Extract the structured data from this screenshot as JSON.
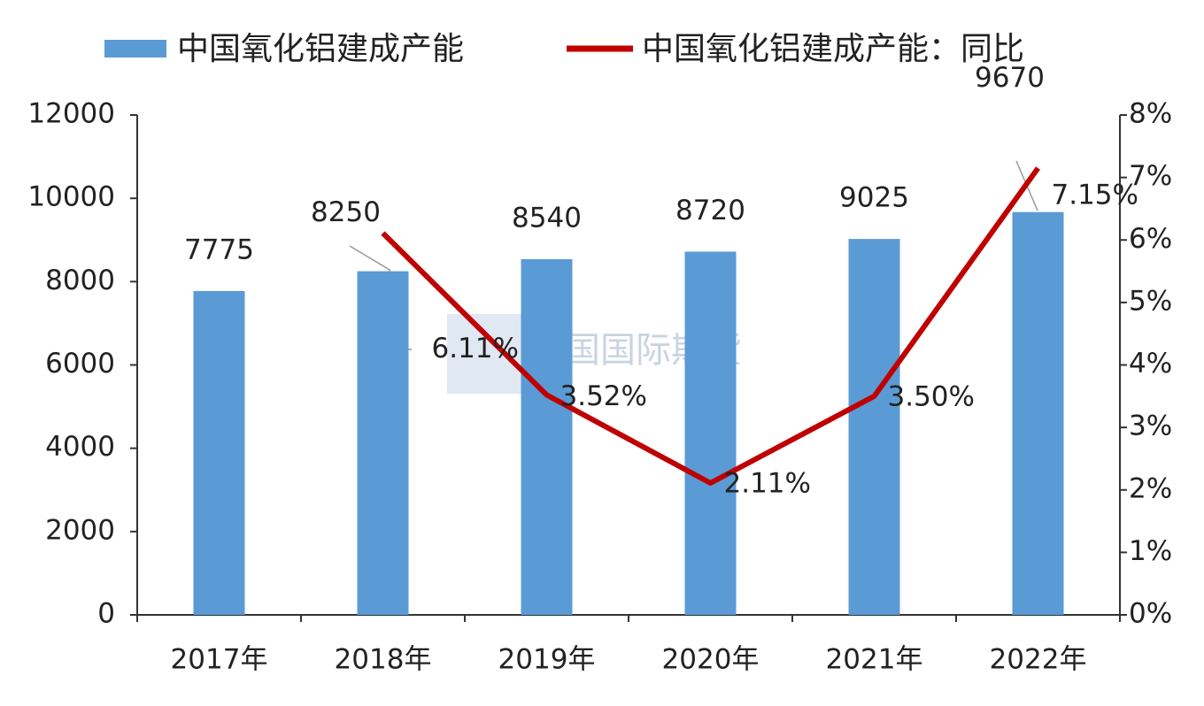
{
  "chart_data": {
    "type": "combo",
    "categories": [
      "2017年",
      "2018年",
      "2019年",
      "2020年",
      "2021年",
      "2022年"
    ],
    "series": [
      {
        "name": "中国氧化铝建成产能",
        "type": "bar",
        "color": "#5b9bd5",
        "values": [
          7775,
          8250,
          8540,
          8720,
          9025,
          9670
        ]
      },
      {
        "name": "中国氧化铝建成产能：同比",
        "type": "line",
        "axis": "y2",
        "color": "#c00000",
        "values": [
          null,
          6.11,
          3.52,
          2.11,
          3.5,
          7.15
        ],
        "value_labels": [
          null,
          "6.11%",
          "3.52%",
          "2.11%",
          "3.50%",
          "7.15%"
        ]
      }
    ],
    "ylim": [
      0,
      12000
    ],
    "yticks": [
      0,
      2000,
      4000,
      6000,
      8000,
      10000,
      12000
    ],
    "y2lim": [
      0,
      8
    ],
    "y2ticks": [
      {
        "value": 0,
        "label": "0%"
      },
      {
        "value": 1,
        "label": "1%"
      },
      {
        "value": 2,
        "label": "2%"
      },
      {
        "value": 3,
        "label": "3%"
      },
      {
        "value": 4,
        "label": "4%"
      },
      {
        "value": 5,
        "label": "5%"
      },
      {
        "value": 6,
        "label": "6%"
      },
      {
        "value": 7,
        "label": "7%"
      },
      {
        "value": 8,
        "label": "8%"
      }
    ],
    "watermark": "中国国际期货",
    "legend": "top"
  }
}
